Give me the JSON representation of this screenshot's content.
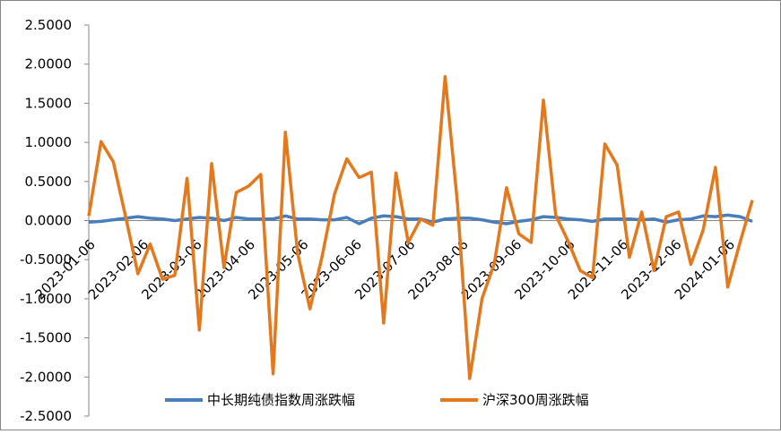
{
  "chart_data": {
    "type": "line",
    "title": "",
    "xlabel": "",
    "ylabel": "",
    "ylim": [
      -2.5,
      2.5
    ],
    "y_ticks": [
      "2.5000",
      "2.0000",
      "1.5000",
      "1.0000",
      "0.5000",
      "0.0000",
      "-0.5000",
      "-1.0000",
      "-1.5000",
      "-2.0000",
      "-2.5000"
    ],
    "x_tick_labels": [
      "2023-01-06",
      "2023-02-06",
      "2023-03-06",
      "2023-04-06",
      "2023-05-06",
      "2023-06-06",
      "2023-07-06",
      "2023-08-06",
      "2023-09-06",
      "2023-10-06",
      "2023-11-06",
      "2023-12-06",
      "2024-01-06"
    ],
    "grid": false,
    "legend_position": "bottom",
    "series": [
      {
        "name": "中长期纯债指数周涨跌幅",
        "color": "#4a7ebb",
        "values": [
          -0.02,
          -0.01,
          0.01,
          0.03,
          0.05,
          0.03,
          0.02,
          0.0,
          0.02,
          0.04,
          0.03,
          0.0,
          0.04,
          0.02,
          0.02,
          0.02,
          0.06,
          0.02,
          0.02,
          0.01,
          0.01,
          0.04,
          -0.04,
          0.03,
          0.06,
          0.05,
          0.02,
          0.02,
          -0.02,
          0.02,
          0.03,
          0.03,
          0.01,
          -0.02,
          -0.04,
          -0.01,
          0.01,
          0.05,
          0.04,
          0.02,
          0.01,
          -0.01,
          0.02,
          0.02,
          0.02,
          0.01,
          0.02,
          -0.02,
          0.01,
          0.02,
          0.06,
          0.05,
          0.07,
          0.05,
          -0.01
        ]
      },
      {
        "name": "沪深300周涨跌幅",
        "color": "#e3791c",
        "values": [
          0.06,
          1.01,
          0.75,
          0.05,
          -0.68,
          -0.3,
          -0.75,
          -0.7,
          0.54,
          -1.4,
          0.73,
          -0.6,
          0.36,
          0.44,
          0.59,
          -1.96,
          1.13,
          -0.42,
          -1.13,
          -0.45,
          0.34,
          0.79,
          0.55,
          0.62,
          -1.31,
          0.61,
          -0.28,
          0.02,
          -0.06,
          1.84,
          0.23,
          -2.02,
          -1.0,
          -0.55,
          0.42,
          -0.17,
          -0.28,
          1.54,
          0.07,
          -0.26,
          -0.64,
          -0.73,
          0.98,
          0.71,
          -0.47,
          0.11,
          -0.64,
          0.05,
          0.11,
          -0.56,
          -0.12,
          0.68,
          -0.85,
          -0.28,
          0.26
        ]
      }
    ]
  }
}
